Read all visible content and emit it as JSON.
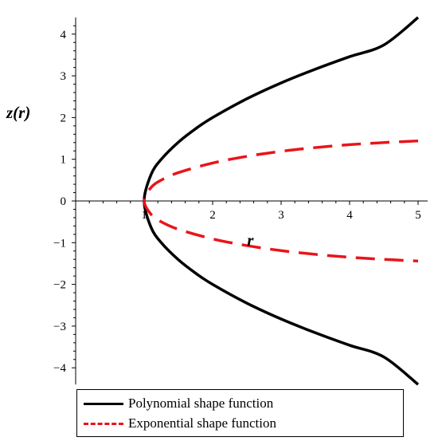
{
  "chart_data": {
    "type": "line",
    "title": "",
    "xlabel": "r",
    "ylabel": "z(r)",
    "xlim": [
      0,
      5
    ],
    "ylim": [
      -4.4,
      4.4
    ],
    "x_ticks": [
      "1",
      "2",
      "3",
      "4",
      "5"
    ],
    "y_ticks": [
      "−4",
      "−3",
      "−2",
      "−1",
      "0",
      "1",
      "2",
      "3",
      "4"
    ],
    "grid": false,
    "legend_position": "bottom",
    "series": [
      {
        "name": "Polynomial shape function",
        "color": "#000000",
        "style": "solid",
        "branches": "±",
        "x": [
          1,
          1.1,
          1.25,
          1.5,
          1.75,
          2,
          2.5,
          3,
          3.5,
          4,
          4.5,
          5
        ],
        "y": [
          0,
          0.63,
          1.0,
          1.41,
          1.73,
          2.0,
          2.45,
          2.83,
          3.16,
          3.46,
          3.74,
          4.4
        ]
      },
      {
        "name": "Exponential shape function",
        "color": "#e8141a",
        "style": "dashed",
        "branches": "±",
        "x": [
          1,
          1.1,
          1.25,
          1.5,
          2,
          2.5,
          3,
          3.5,
          4,
          4.5,
          5
        ],
        "y": [
          0,
          0.32,
          0.5,
          0.68,
          0.91,
          1.07,
          1.19,
          1.28,
          1.35,
          1.4,
          1.44
        ]
      }
    ]
  },
  "legend": {
    "items": [
      "Polynomial shape function",
      "Exponential shape function"
    ]
  }
}
